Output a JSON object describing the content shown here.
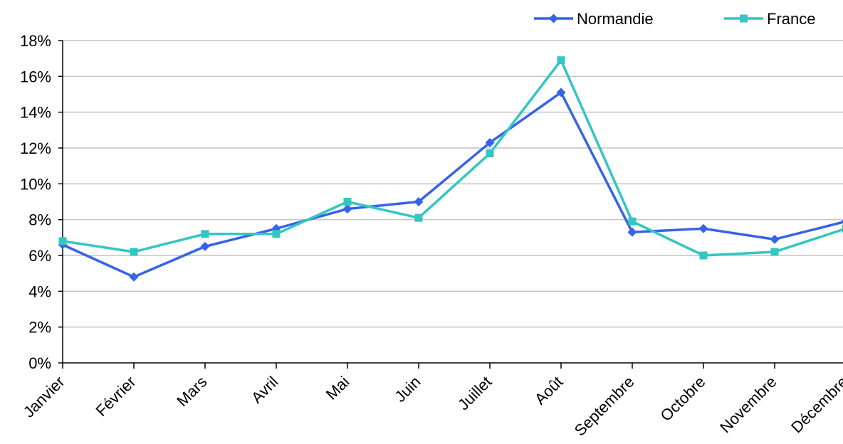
{
  "chart_data": {
    "type": "line",
    "title": "",
    "xlabel": "",
    "ylabel": "",
    "categories": [
      "Janvier",
      "Février",
      "Mars",
      "Avril",
      "Mai",
      "Juin",
      "Juillet",
      "Août",
      "Septembre",
      "Octobre",
      "Novembre",
      "Décembre"
    ],
    "y_ticks": [
      "0%",
      "2%",
      "4%",
      "6%",
      "8%",
      "10%",
      "12%",
      "14%",
      "16%",
      "18%"
    ],
    "ylim": [
      0,
      18
    ],
    "y_unit": "%",
    "grid": true,
    "legend_position": "top-right",
    "series": [
      {
        "name": "Normandie",
        "marker": "diamond",
        "color": "#3563e9",
        "values": [
          6.6,
          4.8,
          6.5,
          7.5,
          8.6,
          9.0,
          12.3,
          15.1,
          7.3,
          7.5,
          6.9,
          7.9
        ]
      },
      {
        "name": "France",
        "marker": "square",
        "color": "#33c6c3",
        "values": [
          6.8,
          6.2,
          7.2,
          7.2,
          9.0,
          8.1,
          11.7,
          16.9,
          7.9,
          6.0,
          6.2,
          7.5
        ]
      }
    ]
  }
}
